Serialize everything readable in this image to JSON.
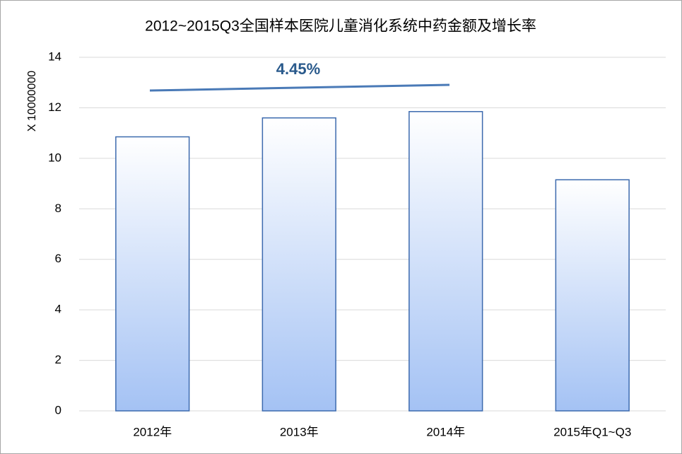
{
  "chart_data": {
    "type": "bar",
    "title": "2012~2015Q3全国样本医院儿童消化系统中药金额及增长率",
    "y_label": "X 10000000",
    "annotation": "4.45%",
    "categories": [
      "2012年",
      "2013年",
      "2014年",
      "2015年Q1~Q3"
    ],
    "values": [
      10.85,
      11.6,
      11.85,
      9.15
    ],
    "color": "#a4c2f4",
    "ylim": [
      0,
      14
    ],
    "yticks": [
      0,
      2,
      4,
      6,
      8,
      10,
      12,
      14
    ],
    "grid": true
  }
}
